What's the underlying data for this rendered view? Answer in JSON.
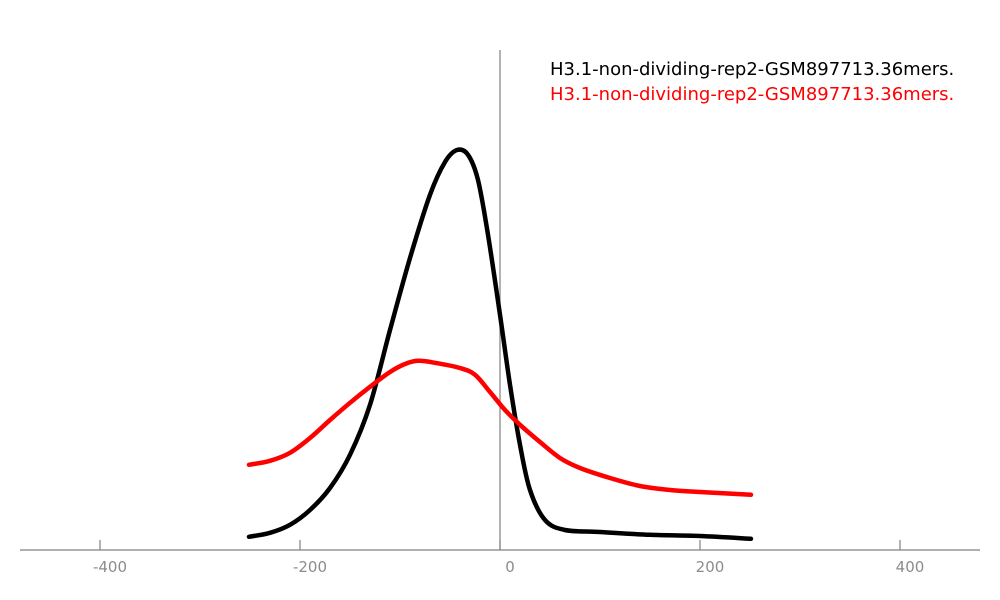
{
  "chart_data": {
    "type": "line",
    "title": "",
    "xlabel": "",
    "ylabel": "",
    "xlim": [
      -480,
      480
    ],
    "ylim": [
      0,
      1.25
    ],
    "x_ticks": [
      -400,
      -200,
      0,
      200,
      400
    ],
    "x_tick_labels": [
      "-400",
      "-200",
      "0",
      "200",
      "400"
    ],
    "y_ticks": [],
    "grid": false,
    "vertical_reference_line_x": 0,
    "legend_position": "top-right",
    "series": [
      {
        "name": "H3.1-non-dividing-rep2-GSM897713.36mers.",
        "color": "#000000",
        "x": [
          -251,
          -230,
          -210,
          -190,
          -170,
          -150,
          -130,
          -110,
          -90,
          -70,
          -55,
          -43,
          -32,
          -22,
          -12,
          0,
          10,
          20,
          30,
          45,
          65,
          100,
          150,
          200,
          251
        ],
        "y": [
          0.033,
          0.043,
          0.063,
          0.1,
          0.155,
          0.238,
          0.363,
          0.55,
          0.73,
          0.888,
          0.97,
          1.0,
          0.988,
          0.925,
          0.788,
          0.588,
          0.413,
          0.263,
          0.15,
          0.075,
          0.05,
          0.045,
          0.038,
          0.035,
          0.028
        ]
      },
      {
        "name": "H3.1-non-dividing-rep2-GSM897713.36mers.",
        "color": "#ff0000",
        "x": [
          -251,
          -230,
          -210,
          -190,
          -170,
          -150,
          -130,
          -110,
          -95,
          -82,
          -65,
          -40,
          -25,
          -10,
          5,
          20,
          40,
          60,
          80,
          110,
          140,
          170,
          200,
          251
        ],
        "y": [
          0.213,
          0.223,
          0.243,
          0.28,
          0.325,
          0.368,
          0.408,
          0.445,
          0.465,
          0.473,
          0.468,
          0.455,
          0.438,
          0.395,
          0.35,
          0.313,
          0.27,
          0.23,
          0.205,
          0.18,
          0.16,
          0.15,
          0.145,
          0.138
        ]
      }
    ]
  }
}
